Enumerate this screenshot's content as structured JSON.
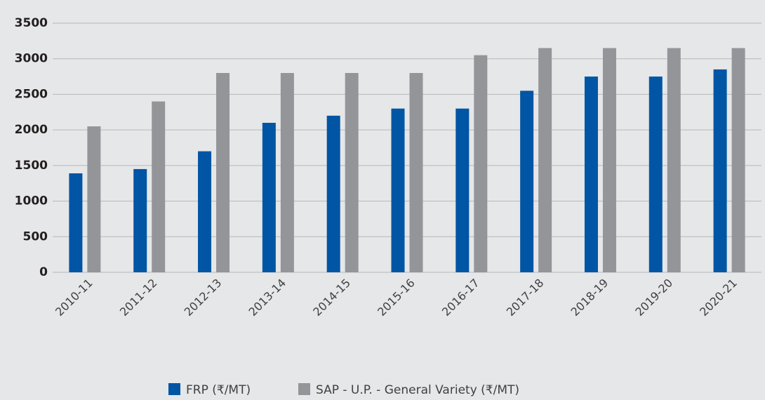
{
  "chart_data": {
    "type": "bar",
    "categories": [
      "2010-11",
      "2011-12",
      "2012-13",
      "2013-14",
      "2014-15",
      "2015-16",
      "2016-17",
      "2017-18",
      "2018-19",
      "2019-20",
      "2020-21"
    ],
    "series": [
      {
        "name": "FRP (₹/MT)",
        "color": "#0055a5",
        "values": [
          1390,
          1450,
          1700,
          2100,
          2200,
          2300,
          2300,
          2550,
          2750,
          2750,
          2850
        ]
      },
      {
        "name": "SAP - U.P. - General Variety (₹/MT)",
        "color": "#939598",
        "values": [
          2050,
          2400,
          2800,
          2800,
          2800,
          2800,
          3050,
          3150,
          3150,
          3150,
          3150
        ]
      }
    ],
    "ylim": [
      0,
      3500
    ],
    "yticks": [
      0,
      500,
      1000,
      1500,
      2000,
      2500,
      3000,
      3500
    ],
    "grid": true,
    "legend": "bottom"
  }
}
